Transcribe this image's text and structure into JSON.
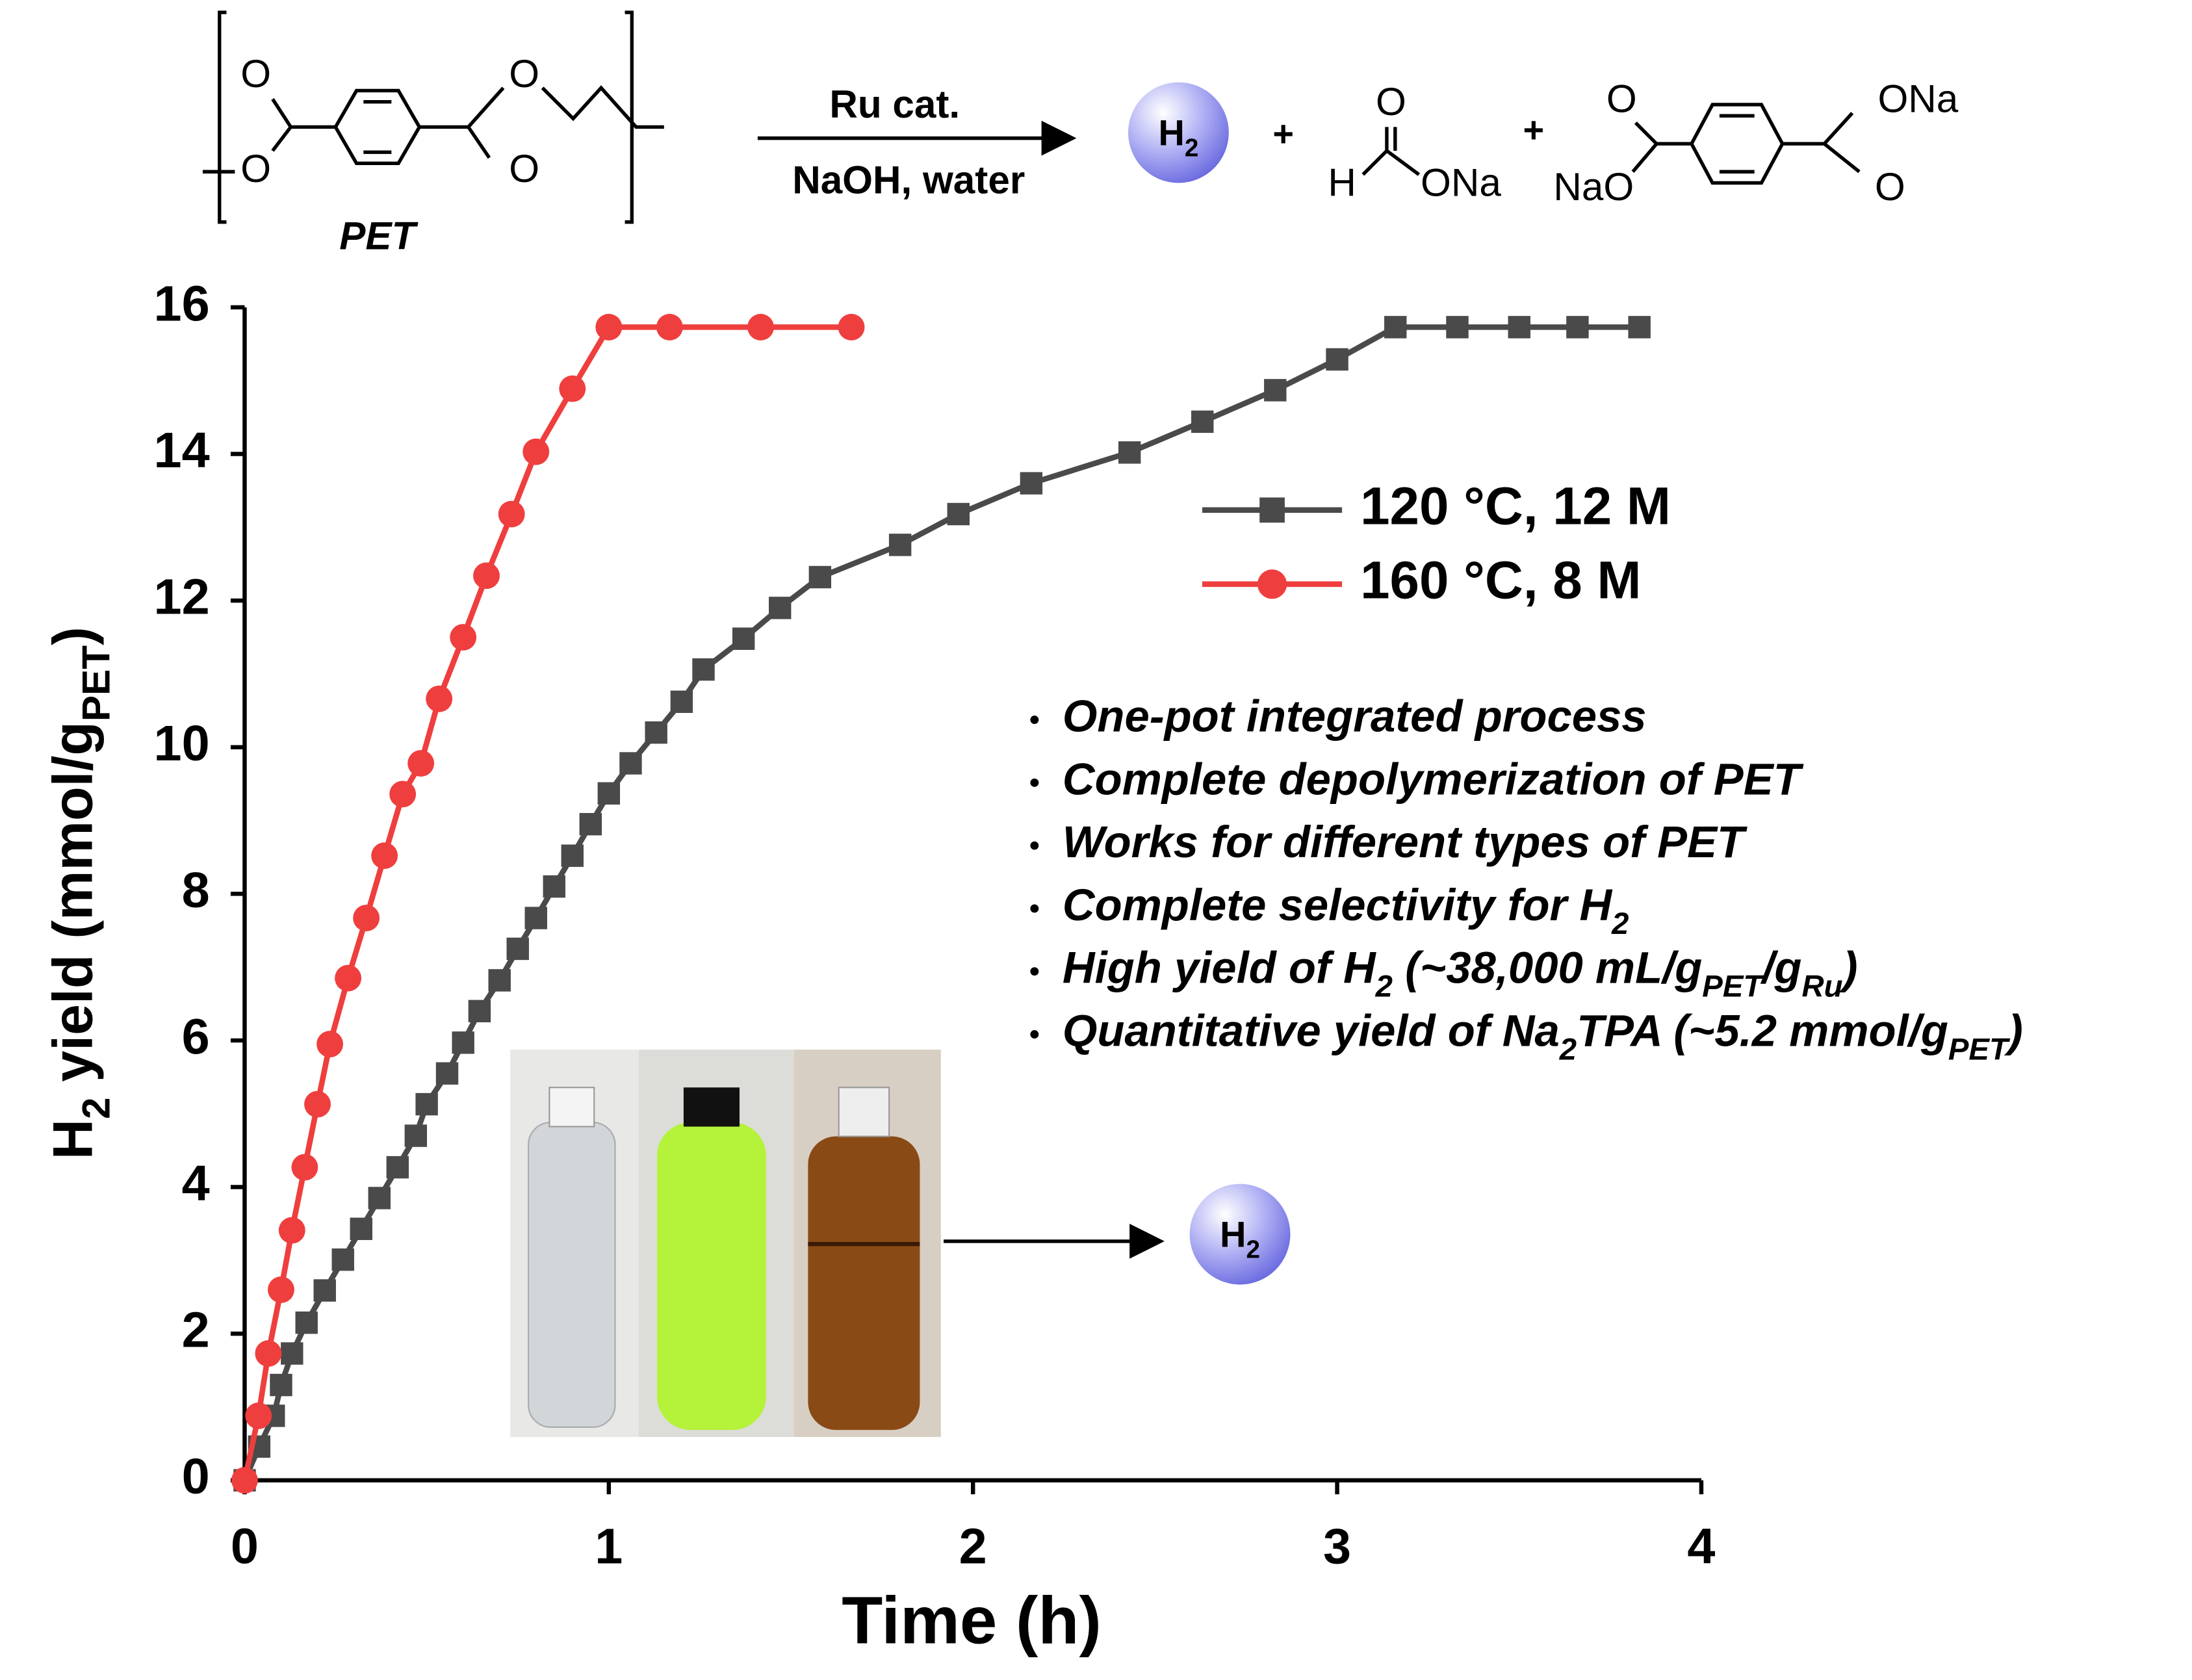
{
  "scheme": {
    "pet_label": "PET",
    "reagent_top": "Ru cat.",
    "reagent_bottom": "NaOH, water",
    "h2": [
      "H",
      "2"
    ],
    "plus": [
      "+",
      "+"
    ],
    "atom_labels": [
      "O",
      "O",
      "O",
      "O",
      "O",
      "H",
      "ONa",
      "O",
      "NaO",
      "ONa",
      "O"
    ]
  },
  "chart_data": {
    "type": "line",
    "xlabel": "Time (h)",
    "ylabel": [
      "H",
      "2",
      " yield (mmol/g",
      "PET",
      ")"
    ],
    "xlim": [
      0,
      4
    ],
    "xticks": [
      0,
      1,
      2,
      3,
      4
    ],
    "ylim": [
      0,
      16
    ],
    "yticks": [
      0,
      2,
      4,
      6,
      8,
      10,
      12,
      14,
      16
    ],
    "legend": "upper right",
    "series": [
      {
        "name": "120 °C, 12 M",
        "color": "#4a4a4a",
        "marker": "square",
        "x": [
          0,
          0.04,
          0.08,
          0.1,
          0.13,
          0.17,
          0.22,
          0.27,
          0.32,
          0.37,
          0.42,
          0.47,
          0.5,
          0.556,
          0.6,
          0.645,
          0.7,
          0.75,
          0.8,
          0.85,
          0.9,
          0.95,
          1.0,
          1.06,
          1.13,
          1.2,
          1.26,
          1.37,
          1.47,
          1.58,
          1.8,
          1.96,
          2.16,
          2.43,
          2.63,
          2.83,
          3.0,
          3.16,
          3.33,
          3.5,
          3.66,
          3.83
        ],
        "values": [
          0,
          0.46,
          0.88,
          1.3,
          1.73,
          2.15,
          2.59,
          3.01,
          3.43,
          3.85,
          4.27,
          4.7,
          5.13,
          5.55,
          5.97,
          6.4,
          6.82,
          7.25,
          7.67,
          8.1,
          8.52,
          8.95,
          9.37,
          9.78,
          10.2,
          10.62,
          11.06,
          11.48,
          11.9,
          12.32,
          12.76,
          13.18,
          13.6,
          14.02,
          14.44,
          14.87,
          15.29,
          15.73,
          15.73,
          15.73,
          15.73,
          15.73
        ]
      },
      {
        "name": "160 °C, 8 M",
        "color": "#ef3e3e",
        "marker": "circle",
        "x": [
          0,
          0.038,
          0.065,
          0.1,
          0.13,
          0.165,
          0.2,
          0.234,
          0.284,
          0.334,
          0.384,
          0.434,
          0.484,
          0.534,
          0.6,
          0.664,
          0.733,
          0.8,
          0.9,
          1.0,
          1.167,
          1.417,
          1.666
        ],
        "values": [
          0,
          0.88,
          1.73,
          2.6,
          3.41,
          4.27,
          5.13,
          5.95,
          6.85,
          7.67,
          8.52,
          9.36,
          9.78,
          10.66,
          11.5,
          12.34,
          13.18,
          14.03,
          14.89,
          15.73,
          15.73,
          15.73,
          15.73
        ]
      }
    ],
    "notes": [
      [
        "One-pot integrated process"
      ],
      [
        "Complete depolymerization of PET"
      ],
      [
        "Works for different types of PET"
      ],
      [
        "Complete selectivity for H",
        "2"
      ],
      [
        "High yield of H",
        "2",
        " (~38,000 mL/g",
        "PET",
        "/g",
        "Ru",
        ")"
      ],
      [
        "Quantitative yield of Na",
        "2",
        "TPA (~5.2 mmol/g",
        "PET",
        ")"
      ]
    ],
    "inset_h2": [
      "H",
      "2"
    ]
  }
}
